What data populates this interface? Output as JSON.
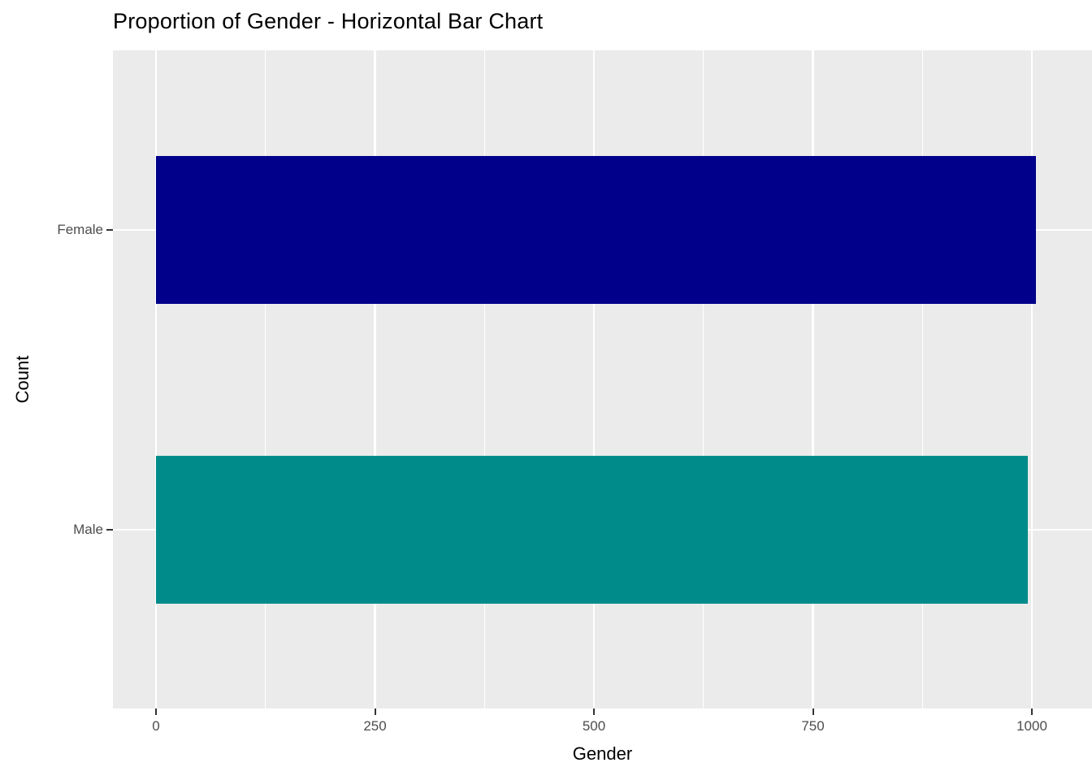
{
  "chart_data": {
    "type": "bar",
    "orientation": "horizontal",
    "title": "Proportion of Gender - Horizontal Bar Chart",
    "xlabel": "Gender",
    "ylabel": "Count",
    "categories": [
      "Female",
      "Male"
    ],
    "values": [
      1005,
      995
    ],
    "bar_colors": [
      "#00008B",
      "#008B8B"
    ],
    "bar_color_names": [
      "navy",
      "teal"
    ],
    "x_ticks": [
      0,
      250,
      500,
      750,
      1000
    ],
    "x_minor_ticks": [
      125,
      375,
      625,
      875
    ],
    "xlim": [
      0,
      1069
    ],
    "grid": true,
    "legend": "none",
    "panel_background": "#EBEBEB",
    "gridline_color": "#FFFFFF",
    "tick_label_color": "#4D4D4D",
    "axis_title_color": "#000000",
    "title_color": "#000000"
  }
}
